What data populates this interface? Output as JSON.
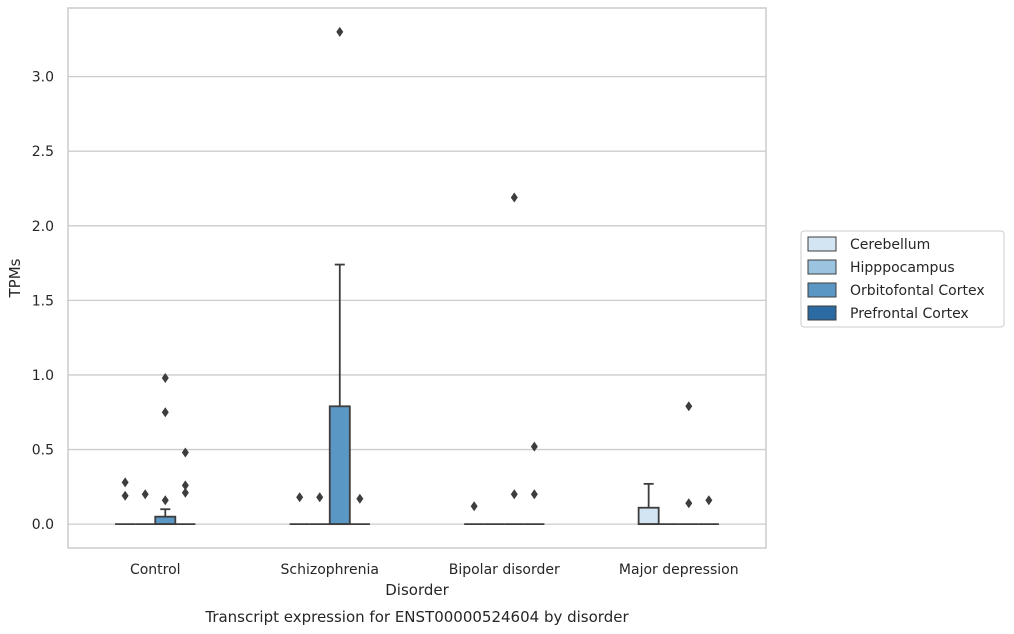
{
  "chart_data": {
    "type": "box",
    "title": "",
    "caption": "Transcript expression for ENST00000524604 by disorder",
    "xlabel": "Disorder",
    "ylabel": "TPMs",
    "ylim": [
      -0.16,
      3.46
    ],
    "yticks": [
      "0.0",
      "0.5",
      "1.0",
      "1.5",
      "2.0",
      "2.5",
      "3.0"
    ],
    "grid": true,
    "legend_position": "right",
    "categories": [
      "Control",
      "Schizophrenia",
      "Bipolar disorder",
      "Major depression"
    ],
    "series": [
      {
        "name": "Cerebellum",
        "color": "#d3e4f3",
        "boxes": [
          {
            "q1": 0,
            "median": 0,
            "q3": 0,
            "whislo": 0,
            "whishi": 0,
            "fliers": [
              0.28,
              0.19
            ]
          },
          {
            "q1": 0,
            "median": 0,
            "q3": 0,
            "whislo": 0,
            "whishi": 0,
            "fliers": [
              0.18
            ]
          },
          {
            "q1": 0,
            "median": 0,
            "q3": 0,
            "whislo": 0,
            "whishi": 0,
            "fliers": [
              0.12
            ]
          },
          {
            "q1": 0,
            "median": 0,
            "q3": 0.11,
            "whislo": 0,
            "whishi": 0.27,
            "fliers": []
          }
        ]
      },
      {
        "name": "Hipppocampus",
        "color": "#9ac4e0",
        "boxes": [
          {
            "q1": 0,
            "median": 0,
            "q3": 0,
            "whislo": 0,
            "whishi": 0,
            "fliers": [
              0.2
            ]
          },
          {
            "q1": 0,
            "median": 0,
            "q3": 0,
            "whislo": 0,
            "whishi": 0,
            "fliers": [
              0.18
            ]
          },
          {
            "q1": 0,
            "median": 0,
            "q3": 0,
            "whislo": 0,
            "whishi": 0,
            "fliers": []
          },
          {
            "q1": 0,
            "median": 0,
            "q3": 0,
            "whislo": 0,
            "whishi": 0,
            "fliers": []
          }
        ]
      },
      {
        "name": "Orbitofontal Cortex",
        "color": "#5b97c4",
        "boxes": [
          {
            "q1": 0,
            "median": 0,
            "q3": 0.05,
            "whislo": 0,
            "whishi": 0.1,
            "fliers": [
              0.98,
              0.75,
              0.16
            ]
          },
          {
            "q1": 0,
            "median": 0,
            "q3": 0.79,
            "whislo": 0,
            "whishi": 1.74,
            "fliers": [
              3.3
            ]
          },
          {
            "q1": 0,
            "median": 0,
            "q3": 0,
            "whislo": 0,
            "whishi": 0,
            "fliers": [
              2.19,
              0.2
            ]
          },
          {
            "q1": 0,
            "median": 0,
            "q3": 0,
            "whislo": 0,
            "whishi": 0,
            "fliers": [
              0.79,
              0.14
            ]
          }
        ]
      },
      {
        "name": "Prefrontal Cortex",
        "color": "#2b6aa3",
        "boxes": [
          {
            "q1": 0,
            "median": 0,
            "q3": 0,
            "whislo": 0,
            "whishi": 0,
            "fliers": [
              0.48,
              0.26,
              0.21
            ]
          },
          {
            "q1": 0,
            "median": 0,
            "q3": 0,
            "whislo": 0,
            "whishi": 0,
            "fliers": [
              0.17
            ]
          },
          {
            "q1": 0,
            "median": 0,
            "q3": 0,
            "whislo": 0,
            "whishi": 0,
            "fliers": [
              0.52,
              0.2
            ]
          },
          {
            "q1": 0,
            "median": 0,
            "q3": 0,
            "whislo": 0,
            "whishi": 0,
            "fliers": [
              0.16
            ]
          }
        ]
      }
    ]
  }
}
